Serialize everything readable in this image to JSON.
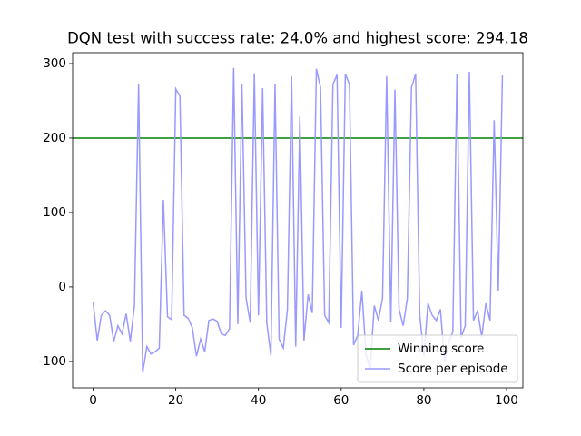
{
  "chart_data": {
    "type": "line",
    "title": "DQN test with success rate: 24.0% and highest score: 294.18",
    "x": [
      0,
      1,
      2,
      3,
      4,
      5,
      6,
      7,
      8,
      9,
      10,
      11,
      12,
      13,
      14,
      15,
      16,
      17,
      18,
      19,
      20,
      21,
      22,
      23,
      24,
      25,
      26,
      27,
      28,
      29,
      30,
      31,
      32,
      33,
      34,
      35,
      36,
      37,
      38,
      39,
      40,
      41,
      42,
      43,
      44,
      45,
      46,
      47,
      48,
      49,
      50,
      51,
      52,
      53,
      54,
      55,
      56,
      57,
      58,
      59,
      60,
      61,
      62,
      63,
      64,
      65,
      66,
      67,
      68,
      69,
      70,
      71,
      72,
      73,
      74,
      75,
      76,
      77,
      78,
      79,
      80,
      81,
      82,
      83,
      84,
      85,
      86,
      87,
      88,
      89,
      90,
      91,
      92,
      93,
      94,
      95,
      96,
      97,
      98,
      99
    ],
    "hlines": [
      {
        "name": "Winning score",
        "value": 200,
        "color": "#008000"
      }
    ],
    "series": [
      {
        "name": "Score per episode",
        "color": "#9999ff",
        "values": [
          -20,
          -72,
          -38,
          -32,
          -38,
          -73,
          -52,
          -63,
          -36,
          -73,
          -25,
          272,
          -115,
          -80,
          -90,
          -87,
          -82,
          117,
          -40,
          -44,
          266,
          256,
          -38,
          -42,
          -55,
          -93,
          -70,
          -87,
          -45,
          -43,
          -46,
          -63,
          -65,
          -56,
          294.18,
          -50,
          273,
          -15,
          -48,
          287,
          -38,
          267,
          -48,
          -92,
          272,
          -70,
          -82,
          -30,
          283,
          -80,
          229,
          -72,
          -10,
          -35,
          293,
          268,
          -38,
          -48,
          272,
          285,
          -55,
          286,
          272,
          -78,
          -65,
          -5,
          -90,
          -110,
          -25,
          -45,
          -15,
          283,
          -47,
          265,
          -30,
          -52,
          -15,
          268,
          286,
          -38,
          -92,
          -22,
          -38,
          -45,
          -30,
          -100,
          -75,
          -60,
          286,
          -68,
          -52,
          289,
          -45,
          -32,
          -67,
          -22,
          -45,
          224,
          -5,
          284
        ]
      }
    ],
    "xlim": [
      -4.95,
      103.95
    ],
    "xticks": [
      0,
      20,
      40,
      60,
      80,
      100
    ],
    "ylim": [
      -135.5,
      314.6
    ],
    "yticks": [
      -100,
      0,
      100,
      200,
      300
    ],
    "legend": "lower right"
  }
}
